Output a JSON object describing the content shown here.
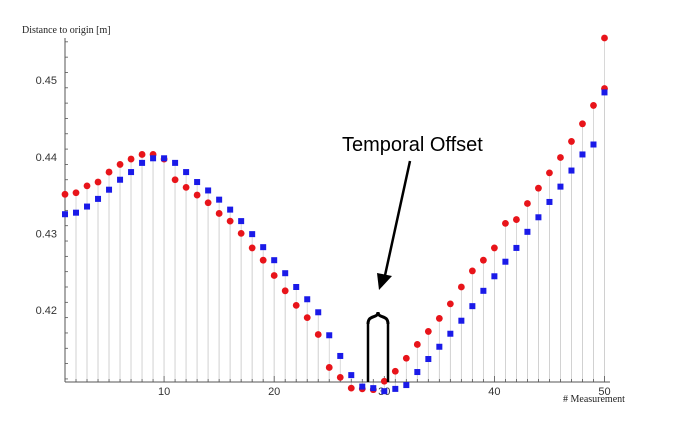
{
  "chart_data": {
    "type": "scatter",
    "title": "",
    "ylabel": "Distance to origin [m]",
    "xlabel": "# Measurement",
    "xlim": [
      1,
      50.5
    ],
    "ylim": [
      0.4106,
      0.4555
    ],
    "x_ticks": [
      10,
      20,
      30,
      40,
      50
    ],
    "y_ticks": [
      0.42,
      0.43,
      0.44,
      0.45
    ],
    "grid": false,
    "drop_lines": true,
    "annotation": "Temporal Offset",
    "series": [
      {
        "color": "#e8141a",
        "marker": "circle",
        "x": [
          1,
          2,
          3,
          4,
          5,
          6,
          7,
          8,
          9,
          10,
          11,
          12,
          13,
          14,
          15,
          16,
          17,
          18,
          19,
          20,
          21,
          22,
          23,
          24,
          25,
          26,
          27,
          28,
          29,
          30,
          31,
          32,
          33,
          34,
          35,
          36,
          37,
          38,
          39,
          40,
          41,
          42,
          43,
          44,
          45,
          46,
          47,
          48,
          49,
          50
        ],
        "y": [
          0.4351,
          0.4353,
          0.4362,
          0.4367,
          0.438,
          0.439,
          0.4397,
          0.4403,
          0.4403,
          0.4397,
          0.437,
          0.436,
          0.435,
          0.434,
          0.4326,
          0.4316,
          0.43,
          0.4281,
          0.4265,
          0.4245,
          0.4225,
          0.4206,
          0.419,
          0.4168,
          0.4125,
          0.4112,
          0.4098,
          0.4097,
          0.4096,
          0.4107,
          0.412,
          0.4137,
          0.4155,
          0.4172,
          0.4189,
          0.4208,
          0.423,
          0.4251,
          0.4265,
          0.4281,
          0.4313,
          0.4318,
          0.4339,
          0.4359,
          0.4379,
          0.4399,
          0.442,
          0.4443,
          0.4467,
          0.4489
        ]
      },
      {
        "color": "#1a1ae8",
        "marker": "square",
        "x": [
          1,
          2,
          3,
          4,
          5,
          6,
          7,
          8,
          9,
          10,
          11,
          12,
          13,
          14,
          15,
          16,
          17,
          18,
          19,
          20,
          21,
          22,
          23,
          24,
          25,
          26,
          27,
          28,
          29,
          30,
          31,
          32,
          33,
          34,
          35,
          36,
          37,
          38,
          39,
          40,
          41,
          42,
          43,
          44,
          45,
          46,
          47,
          48,
          49,
          50
        ],
        "y": [
          0.4325,
          0.4327,
          0.4335,
          0.4345,
          0.4357,
          0.437,
          0.438,
          0.4392,
          0.4398,
          0.4398,
          0.4392,
          0.438,
          0.4367,
          0.4356,
          0.4344,
          0.4331,
          0.4316,
          0.4299,
          0.4282,
          0.4265,
          0.4248,
          0.423,
          0.4214,
          0.4197,
          0.4167,
          0.414,
          0.4115,
          0.41,
          0.4098,
          0.4094,
          0.4097,
          0.4102,
          0.4119,
          0.4136,
          0.4152,
          0.4169,
          0.4186,
          0.4205,
          0.4225,
          0.4244,
          0.4263,
          0.4281,
          0.4302,
          0.4321,
          0.4341,
          0.4361,
          0.4382,
          0.4403,
          0.4416,
          0.4484
        ]
      }
    ],
    "extra_points": [
      {
        "x": 50,
        "y": 0.4555,
        "color": "#e8141a",
        "marker": "circle"
      }
    ]
  }
}
